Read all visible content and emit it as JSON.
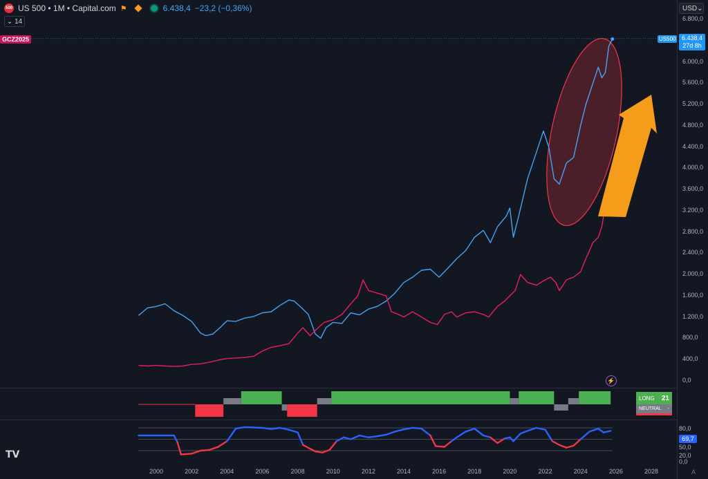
{
  "header": {
    "symbol_title": "US 500 • 1M • Capital.com",
    "last_price": "6.438,4",
    "change": "−23,2 (−0,36%)",
    "logo_text": "500",
    "interval_count": "14"
  },
  "currency": "USD",
  "compare_symbol": "GCZ2025",
  "price_tag": {
    "symbol": "US500",
    "price": "6.438,4",
    "countdown": "27d 8h"
  },
  "y_ticks": [
    "6.800,0",
    "6.000,0",
    "5.600,0",
    "5.200,0",
    "4.800,0",
    "4.400,0",
    "4.000,0",
    "3.600,0",
    "3.200,0",
    "2.800,0",
    "2.400,0",
    "2.000,0",
    "1.600,0",
    "1.200,0",
    "800,0",
    "400,0",
    "0,0"
  ],
  "x_ticks": [
    "2000",
    "2002",
    "2004",
    "2006",
    "2008",
    "2010",
    "2012",
    "2014",
    "2016",
    "2018",
    "2020",
    "2022",
    "2024",
    "2026",
    "2028"
  ],
  "signal_panel": {
    "long_label": "LONG",
    "long_count": "21",
    "neutral_label": "NEUTRAL",
    "neutral_count": "-"
  },
  "oscillator": {
    "levels": [
      "80,0",
      "50,0",
      "20,0",
      "0,0"
    ],
    "value": "69,7"
  },
  "colors": {
    "us500": "#42a5f5",
    "gold": "#e91e63",
    "long": "#4caf50",
    "short": "#f23645",
    "neutral": "#787b86",
    "arrow": "#f59d1b",
    "osc_high": "#2962ff",
    "osc_low": "#f23645"
  },
  "chart_data": {
    "type": "line",
    "x_unit": "year",
    "ylim": [
      0,
      6800
    ],
    "series": [
      {
        "name": "US500",
        "x": [
          1999.0,
          1999.5,
          2000.0,
          2000.5,
          2001.0,
          2001.5,
          2002.0,
          2002.5,
          2002.8,
          2003.2,
          2003.6,
          2004.0,
          2004.5,
          2005.0,
          2005.5,
          2006.0,
          2006.5,
          2007.0,
          2007.5,
          2007.8,
          2008.2,
          2008.6,
          2009.0,
          2009.3,
          2009.6,
          2010.0,
          2010.5,
          2011.0,
          2011.5,
          2012.0,
          2012.5,
          2013.0,
          2013.5,
          2014.0,
          2014.5,
          2015.0,
          2015.5,
          2016.0,
          2016.5,
          2017.0,
          2017.5,
          2018.0,
          2018.5,
          2018.9,
          2019.3,
          2019.8,
          2020.0,
          2020.2,
          2020.5,
          2021.0,
          2021.5,
          2021.9,
          2022.2,
          2022.5,
          2022.8,
          2023.2,
          2023.6,
          2024.0,
          2024.3,
          2024.7,
          2025.0,
          2025.2,
          2025.4,
          2025.6,
          2025.8
        ],
        "values": [
          1230,
          1370,
          1400,
          1450,
          1320,
          1230,
          1120,
          900,
          850,
          880,
          1000,
          1130,
          1120,
          1180,
          1210,
          1280,
          1300,
          1420,
          1520,
          1500,
          1380,
          1250,
          880,
          800,
          1000,
          1100,
          1080,
          1280,
          1240,
          1350,
          1400,
          1500,
          1650,
          1850,
          1950,
          2080,
          2100,
          1950,
          2120,
          2300,
          2450,
          2700,
          2830,
          2600,
          2900,
          3100,
          3250,
          2700,
          3100,
          3800,
          4300,
          4700,
          4400,
          3800,
          3700,
          4100,
          4200,
          4800,
          5200,
          5600,
          5900,
          5700,
          5800,
          6300,
          6430
        ]
      },
      {
        "name": "GCZ2025",
        "x": [
          1999.0,
          1999.5,
          2000.0,
          2000.5,
          2001.0,
          2001.5,
          2002.0,
          2002.5,
          2003.0,
          2003.5,
          2004.0,
          2004.5,
          2005.0,
          2005.5,
          2006.0,
          2006.5,
          2007.0,
          2007.5,
          2008.0,
          2008.3,
          2008.7,
          2009.0,
          2009.5,
          2010.0,
          2010.5,
          2011.0,
          2011.4,
          2011.7,
          2012.0,
          2012.5,
          2013.0,
          2013.3,
          2013.7,
          2014.0,
          2014.5,
          2015.0,
          2015.5,
          2015.9,
          2016.3,
          2016.7,
          2017.0,
          2017.5,
          2018.0,
          2018.5,
          2018.8,
          2019.3,
          2019.7,
          2020.0,
          2020.3,
          2020.6,
          2021.0,
          2021.5,
          2022.0,
          2022.3,
          2022.6,
          2022.8,
          2023.2,
          2023.6,
          2024.0,
          2024.3,
          2024.7,
          2025.0,
          2025.2,
          2025.4,
          2025.6,
          2025.8
        ],
        "values": [
          290,
          280,
          290,
          280,
          270,
          280,
          310,
          320,
          350,
          390,
          420,
          430,
          440,
          460,
          560,
          630,
          660,
          700,
          900,
          1000,
          850,
          950,
          1100,
          1150,
          1250,
          1450,
          1600,
          1900,
          1700,
          1650,
          1600,
          1300,
          1250,
          1200,
          1300,
          1200,
          1100,
          1060,
          1250,
          1300,
          1200,
          1280,
          1300,
          1250,
          1200,
          1400,
          1500,
          1600,
          1700,
          2000,
          1850,
          1800,
          1900,
          1950,
          1850,
          1700,
          1900,
          1950,
          2050,
          2300,
          2600,
          2700,
          2900,
          3300,
          3400,
          3500
        ]
      }
    ],
    "signal_bars": [
      {
        "from": 2003.8,
        "to": 2004.8,
        "state": "neutral"
      },
      {
        "from": 2004.8,
        "to": 2007.1,
        "state": "long"
      },
      {
        "from": 2002.2,
        "to": 2003.8,
        "state": "short"
      },
      {
        "from": 2007.1,
        "to": 2007.4,
        "state": "neutral"
      },
      {
        "from": 2007.4,
        "to": 2009.1,
        "state": "short"
      },
      {
        "from": 2009.1,
        "to": 2009.9,
        "state": "neutral"
      },
      {
        "from": 2009.9,
        "to": 2020.0,
        "state": "long"
      },
      {
        "from": 2020.0,
        "to": 2020.5,
        "state": "neutral"
      },
      {
        "from": 2020.5,
        "to": 2022.5,
        "state": "long"
      },
      {
        "from": 2022.5,
        "to": 2023.3,
        "state": "neutral"
      },
      {
        "from": 2023.3,
        "to": 2023.9,
        "state": "neutral"
      },
      {
        "from": 2023.9,
        "to": 2025.7,
        "state": "long"
      }
    ],
    "oscillator": {
      "x": [
        1999.0,
        2000.0,
        2001.0,
        2001.2,
        2001.4,
        2002.0,
        2002.5,
        2003.0,
        2003.5,
        2004.0,
        2004.5,
        2005.0,
        2006.0,
        2006.5,
        2007.0,
        2007.5,
        2008.0,
        2008.3,
        2008.7,
        2009.0,
        2009.4,
        2009.8,
        2010.2,
        2010.6,
        2011.0,
        2011.5,
        2012.0,
        2012.5,
        2013.0,
        2013.5,
        2014.0,
        2014.5,
        2015.0,
        2015.5,
        2015.8,
        2016.3,
        2016.7,
        2017.0,
        2017.5,
        2018.0,
        2018.5,
        2018.9,
        2019.3,
        2019.7,
        2020.0,
        2020.2,
        2020.6,
        2021.0,
        2021.5,
        2022.0,
        2022.4,
        2022.8,
        2023.2,
        2023.6,
        2024.0,
        2024.5,
        2025.0,
        2025.3,
        2025.7
      ],
      "values": [
        60,
        60,
        60,
        42,
        10,
        12,
        20,
        22,
        30,
        45,
        78,
        82,
        80,
        77,
        80,
        75,
        68,
        35,
        25,
        18,
        15,
        22,
        45,
        55,
        50,
        60,
        55,
        58,
        62,
        70,
        76,
        80,
        78,
        60,
        32,
        30,
        45,
        55,
        70,
        78,
        60,
        55,
        40,
        52,
        55,
        45,
        65,
        72,
        80,
        75,
        45,
        35,
        28,
        33,
        50,
        70,
        78,
        68,
        72
      ]
    }
  }
}
